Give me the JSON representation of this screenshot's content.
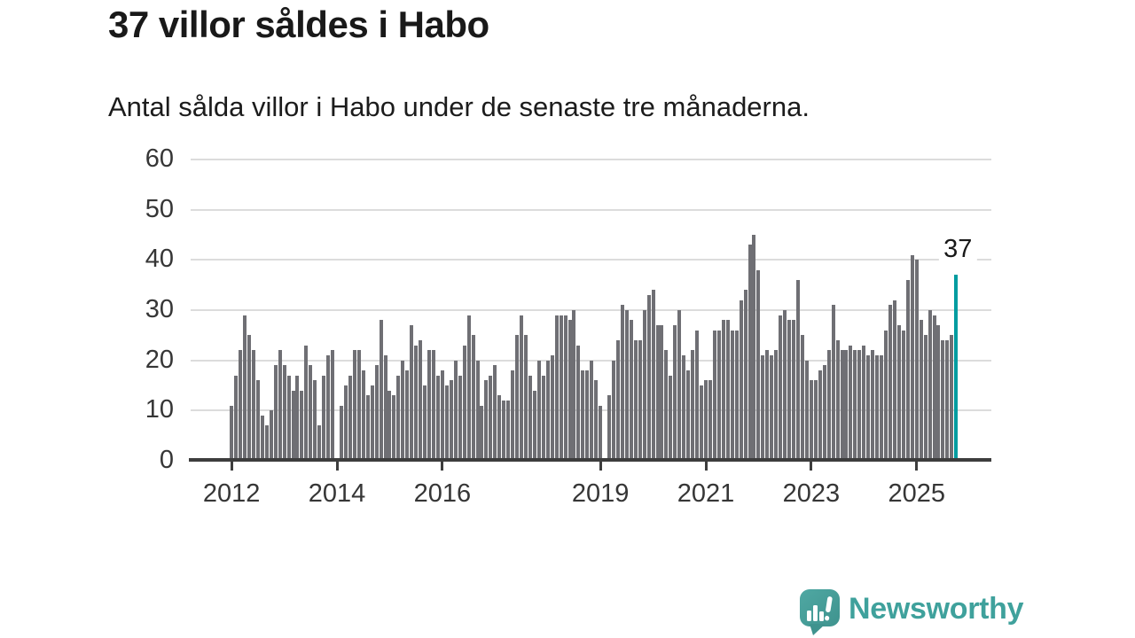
{
  "header": {
    "title": "37 villor såldes i Habo",
    "subtitle": "Antal sålda villor i Habo under de senaste tre månaderna."
  },
  "chart_data": {
    "type": "bar",
    "title": "37 villor såldes i Habo",
    "subtitle": "Antal sålda villor i Habo under de senaste tre månaderna.",
    "frequency": "monthly",
    "x_start": "2012-01",
    "x_end": "2025-10",
    "values": [
      11,
      17,
      22,
      29,
      25,
      22,
      16,
      9,
      7,
      10,
      19,
      22,
      19,
      17,
      14,
      17,
      14,
      23,
      19,
      16,
      7,
      17,
      21,
      22,
      0,
      11,
      15,
      17,
      22,
      22,
      18,
      13,
      15,
      19,
      28,
      21,
      14,
      13,
      17,
      20,
      18,
      27,
      23,
      24,
      15,
      22,
      22,
      17,
      18,
      15,
      16,
      20,
      17,
      23,
      29,
      25,
      20,
      11,
      16,
      17,
      19,
      13,
      12,
      12,
      18,
      25,
      29,
      25,
      17,
      14,
      20,
      17,
      20,
      21,
      29,
      29,
      29,
      28,
      30,
      23,
      18,
      18,
      20,
      16,
      11,
      0,
      13,
      20,
      24,
      31,
      30,
      28,
      24,
      24,
      30,
      33,
      34,
      27,
      27,
      22,
      17,
      27,
      30,
      21,
      18,
      22,
      26,
      15,
      16,
      16,
      26,
      26,
      28,
      28,
      26,
      26,
      32,
      34,
      43,
      45,
      38,
      21,
      22,
      21,
      22,
      29,
      30,
      28,
      28,
      36,
      25,
      20,
      16,
      16,
      18,
      19,
      22,
      31,
      24,
      22,
      22,
      23,
      22,
      22,
      23,
      21,
      22,
      21,
      21,
      26,
      31,
      32,
      27,
      26,
      36,
      41,
      40,
      28,
      25,
      30,
      29,
      27,
      24,
      24,
      25,
      37
    ],
    "highlight_last": true,
    "annotation_value": "37",
    "ylim": [
      0,
      60
    ],
    "yticks": [
      0,
      10,
      20,
      30,
      40,
      50,
      60
    ],
    "xticks": [
      {
        "label": "2012",
        "month": 0
      },
      {
        "label": "2014",
        "month": 24
      },
      {
        "label": "2016",
        "month": 48
      },
      {
        "label": "2019",
        "month": 84
      },
      {
        "label": "2021",
        "month": 108
      },
      {
        "label": "2023",
        "month": 132
      },
      {
        "label": "2025",
        "month": 156
      }
    ],
    "grid": true,
    "legend": false,
    "bar_color": "#6f6f74",
    "highlight_color": "#009ca0",
    "grid_color": "#dcdcdc",
    "axis_color": "#3d3d3d"
  },
  "footer": {
    "brand": "Newsworthy",
    "brand_color": "#3fa19c"
  }
}
